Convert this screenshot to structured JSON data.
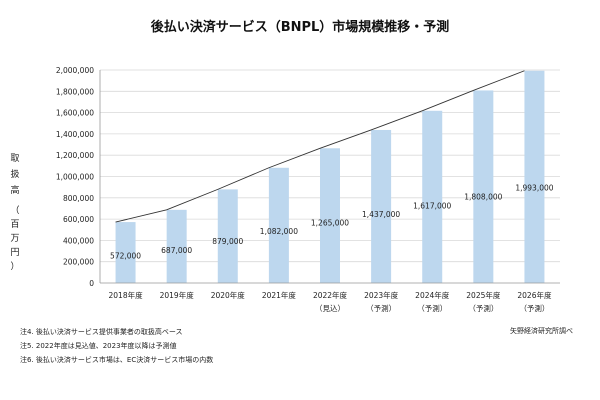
{
  "chart_data": {
    "type": "bar",
    "title": "後払い決済サービス（BNPL）市場規模推移・予測",
    "ylabel": "取扱高（百万円）",
    "categories": [
      "2018年度",
      "2019年度",
      "2020年度",
      "2021年度",
      "2022年度",
      "2023年度",
      "2024年度",
      "2025年度",
      "2026年度"
    ],
    "category_sublabels": [
      "",
      "",
      "",
      "",
      "（見込）",
      "（予測）",
      "（予測）",
      "（予測）",
      "（予測）"
    ],
    "values": [
      572000,
      687000,
      879000,
      1082000,
      1265000,
      1437000,
      1617000,
      1808000,
      1993000
    ],
    "value_labels": [
      "572,000",
      "687,000",
      "879,000",
      "1,082,000",
      "1,265,000",
      "1,437,000",
      "1,617,000",
      "1,808,000",
      "1,993,000"
    ],
    "ylim": [
      0,
      2000000
    ],
    "yticks": [
      0,
      200000,
      400000,
      600000,
      800000,
      1000000,
      1200000,
      1400000,
      1600000,
      1800000,
      2000000
    ],
    "ytick_labels": [
      "0",
      "200,000",
      "400,000",
      "600,000",
      "800,000",
      "1,000,000",
      "1,200,000",
      "1,400,000",
      "1,600,000",
      "1,800,000",
      "2,000,000"
    ],
    "grid": true,
    "bar_color": "#bdd7ee",
    "trend_line": true
  },
  "notes": [
    "注4. 後払い決済サービス提供事業者の取扱高ベース",
    "注5. 2022年度は見込値、2023年度以降は予測値",
    "注6. 後払い決済サービス市場は、EC決済サービス市場の内数"
  ],
  "source": "矢野経済研究所調べ"
}
